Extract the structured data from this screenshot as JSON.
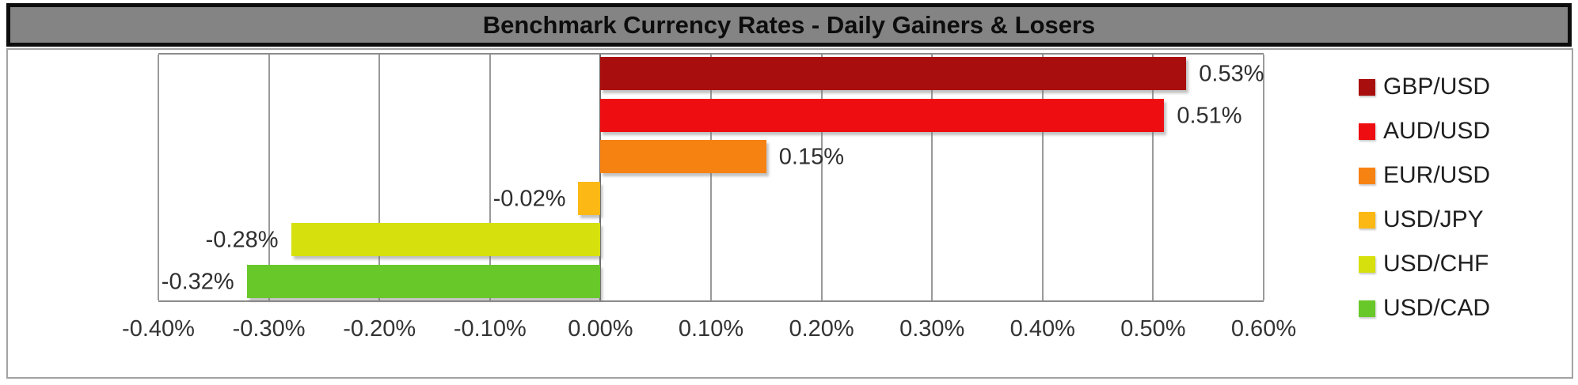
{
  "title": "Benchmark Currency Rates - Daily Gainers & Losers",
  "chart_data": {
    "type": "bar",
    "orientation": "horizontal",
    "title": "Benchmark Currency Rates - Daily Gainers & Losers",
    "categories": [
      "GBP/USD",
      "AUD/USD",
      "EUR/USD",
      "USD/JPY",
      "USD/CHF",
      "USD/CAD"
    ],
    "values": [
      0.53,
      0.51,
      0.15,
      -0.02,
      -0.28,
      -0.32
    ],
    "value_labels": [
      "0.53%",
      "0.51%",
      "0.15%",
      "-0.02%",
      "-0.28%",
      "-0.32%"
    ],
    "bar_colors": [
      "#a90e0e",
      "#ee0d11",
      "#f68212",
      "#fcb814",
      "#d6e00d",
      "#68c829"
    ],
    "xlim": [
      -0.4,
      0.6
    ],
    "x_tick_step": 0.1,
    "x_tick_labels": [
      "-0.40%",
      "-0.30%",
      "-0.20%",
      "-0.10%",
      "0.00%",
      "0.10%",
      "0.20%",
      "0.30%",
      "0.40%",
      "0.50%",
      "0.60%"
    ],
    "grid": "vertical-gridlines-on",
    "legend_position": "right",
    "legend": [
      {
        "label": "GBP/USD",
        "color": "#a90e0e"
      },
      {
        "label": "AUD/USD",
        "color": "#ee0d11"
      },
      {
        "label": "EUR/USD",
        "color": "#f68212"
      },
      {
        "label": "USD/JPY",
        "color": "#fcb814"
      },
      {
        "label": "USD/CHF",
        "color": "#d6e00d"
      },
      {
        "label": "USD/CAD",
        "color": "#68c829"
      }
    ]
  },
  "styles": {
    "title_bar_fill": "#848484",
    "title_bar_border": "#0d0d0d",
    "title_text_color": "#0d0d0d",
    "canvas_border": "#a3a3a3",
    "plot_border": "#8c8c8c",
    "gridline_color": "#9a9a9a",
    "zero_line_color": "#6e6e6e",
    "label_color": "#2e2e2e",
    "tick_color": "#333333"
  }
}
